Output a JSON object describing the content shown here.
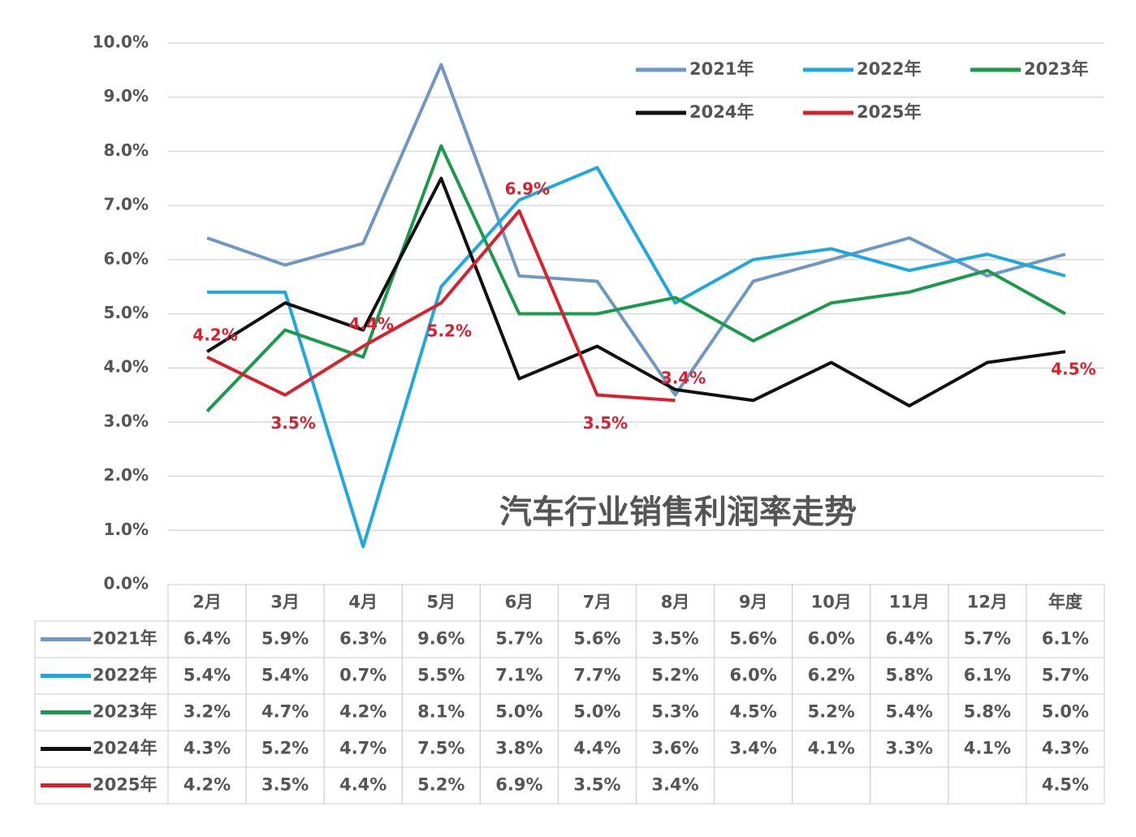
{
  "chart_data": {
    "type": "line",
    "title": "汽车行业销售利润率走势",
    "categories": [
      "2月",
      "3月",
      "4月",
      "5月",
      "6月",
      "7月",
      "8月",
      "9月",
      "10月",
      "11月",
      "12月",
      "年度"
    ],
    "series": [
      {
        "name": "2021年",
        "color": "#6f97c6",
        "values": [
          6.4,
          5.9,
          6.3,
          9.6,
          5.7,
          5.6,
          3.5,
          5.6,
          6.0,
          6.4,
          5.7,
          6.1
        ],
        "value_labels": [
          "6.4%",
          "5.9%",
          "6.3%",
          "9.6%",
          "5.7%",
          "5.6%",
          "3.5%",
          "5.6%",
          "6.0%",
          "6.4%",
          "5.7%",
          "6.1%"
        ]
      },
      {
        "name": "2022年",
        "color": "#1fa8e0",
        "values": [
          5.4,
          5.4,
          0.7,
          5.5,
          7.1,
          7.7,
          5.2,
          6.0,
          6.2,
          5.8,
          6.1,
          5.7
        ],
        "value_labels": [
          "5.4%",
          "5.4%",
          "0.7%",
          "5.5%",
          "7.1%",
          "7.7%",
          "5.2%",
          "6.0%",
          "6.2%",
          "5.8%",
          "6.1%",
          "5.7%"
        ]
      },
      {
        "name": "2023年",
        "color": "#1a9a4a",
        "values": [
          3.2,
          4.7,
          4.2,
          8.1,
          5.0,
          5.0,
          5.3,
          4.5,
          5.2,
          5.4,
          5.8,
          5.0
        ],
        "value_labels": [
          "3.2%",
          "4.7%",
          "4.2%",
          "8.1%",
          "5.0%",
          "5.0%",
          "5.3%",
          "4.5%",
          "5.2%",
          "5.4%",
          "5.8%",
          "5.0%"
        ]
      },
      {
        "name": "2024年",
        "color": "#111111",
        "values": [
          4.3,
          5.2,
          4.7,
          7.5,
          3.8,
          4.4,
          3.6,
          3.4,
          4.1,
          3.3,
          4.1,
          4.3
        ],
        "value_labels": [
          "4.3%",
          "5.2%",
          "4.7%",
          "7.5%",
          "3.8%",
          "4.4%",
          "3.6%",
          "3.4%",
          "4.1%",
          "3.3%",
          "4.1%",
          "4.3%"
        ]
      },
      {
        "name": "2025年",
        "color": "#d9212e",
        "show_value_labels": true,
        "values": [
          4.2,
          3.5,
          4.4,
          5.2,
          6.9,
          3.5,
          3.4,
          null,
          null,
          null,
          null,
          4.5
        ],
        "value_labels": [
          "4.2%",
          "3.5%",
          "4.4%",
          "5.2%",
          "6.9%",
          "3.5%",
          "3.4%",
          null,
          null,
          null,
          null,
          "4.5%"
        ]
      }
    ],
    "ylim": [
      0,
      10
    ],
    "yticks": [
      {
        "value": 0,
        "label": "0.0%"
      },
      {
        "value": 1,
        "label": "1.0%"
      },
      {
        "value": 2,
        "label": "2.0%"
      },
      {
        "value": 3,
        "label": "3.0%"
      },
      {
        "value": 4,
        "label": "4.0%"
      },
      {
        "value": 5,
        "label": "5.0%"
      },
      {
        "value": 6,
        "label": "6.0%"
      },
      {
        "value": 7,
        "label": "7.0%"
      },
      {
        "value": 8,
        "label": "8.0%"
      },
      {
        "value": 9,
        "label": "9.0%"
      },
      {
        "value": 10,
        "label": "10.0%"
      }
    ],
    "grid": true,
    "legend": "top-right"
  }
}
